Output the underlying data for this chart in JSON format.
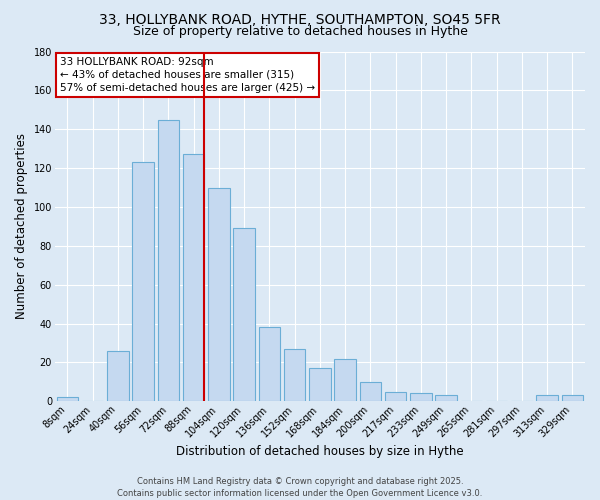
{
  "title_line1": "33, HOLLYBANK ROAD, HYTHE, SOUTHAMPTON, SO45 5FR",
  "title_line2": "Size of property relative to detached houses in Hythe",
  "xlabel": "Distribution of detached houses by size in Hythe",
  "ylabel": "Number of detached properties",
  "bar_labels": [
    "8sqm",
    "24sqm",
    "40sqm",
    "56sqm",
    "72sqm",
    "88sqm",
    "104sqm",
    "120sqm",
    "136sqm",
    "152sqm",
    "168sqm",
    "184sqm",
    "200sqm",
    "217sqm",
    "233sqm",
    "249sqm",
    "265sqm",
    "281sqm",
    "297sqm",
    "313sqm",
    "329sqm"
  ],
  "bar_values": [
    2,
    0,
    26,
    123,
    145,
    127,
    110,
    89,
    38,
    27,
    17,
    22,
    10,
    5,
    4,
    3,
    0,
    0,
    0,
    3,
    3
  ],
  "bar_color": "#c5d9f0",
  "bar_edge_color": "#6baed6",
  "figure_bg_color": "#dce9f5",
  "plot_bg_color": "#dce9f5",
  "grid_color": "#ffffff",
  "vline_index": 5,
  "vline_color": "#cc0000",
  "annotation_text": "33 HOLLYBANK ROAD: 92sqm\n← 43% of detached houses are smaller (315)\n57% of semi-detached houses are larger (425) →",
  "annotation_box_color": "#ffffff",
  "annotation_box_edge": "#cc0000",
  "footer_line1": "Contains HM Land Registry data © Crown copyright and database right 2025.",
  "footer_line2": "Contains public sector information licensed under the Open Government Licence v3.0.",
  "ylim": [
    0,
    180
  ],
  "yticks": [
    0,
    20,
    40,
    60,
    80,
    100,
    120,
    140,
    160,
    180
  ],
  "title1_fontsize": 10,
  "title2_fontsize": 9,
  "xlabel_fontsize": 8.5,
  "ylabel_fontsize": 8.5,
  "tick_fontsize": 7,
  "annotation_fontsize": 7.5,
  "footer_fontsize": 6
}
